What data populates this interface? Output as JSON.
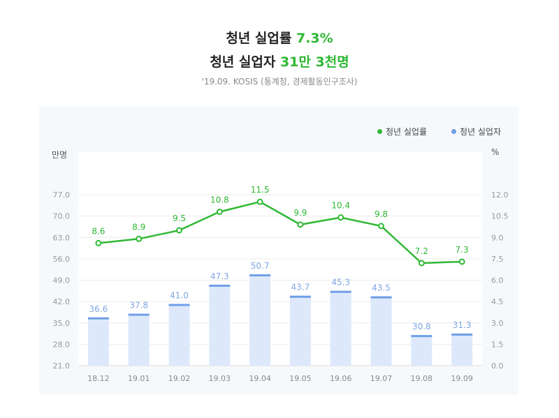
{
  "header": {
    "title1_prefix": "청년 실업률 ",
    "title1_value": "7.3%",
    "title2_prefix": "청년 실업자 ",
    "title2_value": "31만 3천명",
    "source": "'19.09. KOSIS (통계청, 경제활동인구조사)"
  },
  "colors": {
    "line": "#2fb834",
    "bar_fill": "#dde9fb",
    "bar_cap": "#6f9ee6",
    "bar_label": "#7ea6e3",
    "panel": "#f6f9fb",
    "plot": "#ffffff"
  },
  "legend": {
    "rate_label": "청년 실업률",
    "count_label": "청년 실업자"
  },
  "chart_data": {
    "type": "bar+line",
    "categories": [
      "18.12",
      "19.01",
      "19.02",
      "19.03",
      "19.04",
      "19.05",
      "19.06",
      "19.07",
      "19.08",
      "19.09"
    ],
    "series": [
      {
        "name": "청년 실업자",
        "type": "bar",
        "axis": "left",
        "values": [
          36.6,
          37.8,
          41.0,
          47.3,
          50.7,
          43.7,
          45.3,
          43.5,
          30.8,
          31.3
        ],
        "labels": [
          "36.6",
          "37.8",
          "41.0",
          "47.3",
          "50.7",
          "43.7",
          "45.3",
          "43.5",
          "30.8",
          "31.3"
        ]
      },
      {
        "name": "청년 실업률",
        "type": "line",
        "axis": "right",
        "values": [
          8.6,
          8.9,
          9.5,
          10.8,
          11.5,
          9.9,
          10.4,
          9.8,
          7.2,
          7.3
        ],
        "labels": [
          "8.6",
          "8.9",
          "9.5",
          "10.8",
          "11.5",
          "9.9",
          "10.4",
          "9.8",
          "7.2",
          "7.3"
        ]
      }
    ],
    "y_left": {
      "unit": "만명",
      "ylim": [
        21.0,
        77.0
      ],
      "ticks": [
        21.0,
        28.0,
        35.0,
        42.0,
        49.0,
        56.0,
        63.0,
        70.0,
        77.0
      ],
      "tick_labels": [
        "21.0",
        "28.0",
        "35.0",
        "42.0",
        "49.0",
        "56.0",
        "63.0",
        "70.0",
        "77.0"
      ]
    },
    "y_right": {
      "unit": "%",
      "ylim": [
        0.0,
        12.0
      ],
      "ticks": [
        0.0,
        1.5,
        3.0,
        4.5,
        6.0,
        7.5,
        9.0,
        10.5,
        12.0
      ],
      "tick_labels": [
        "0.0",
        "1.5",
        "3.0",
        "4.5",
        "6.0",
        "7.5",
        "9.0",
        "10.5",
        "12.0"
      ]
    },
    "grid": true,
    "legend_position": "top-right"
  }
}
